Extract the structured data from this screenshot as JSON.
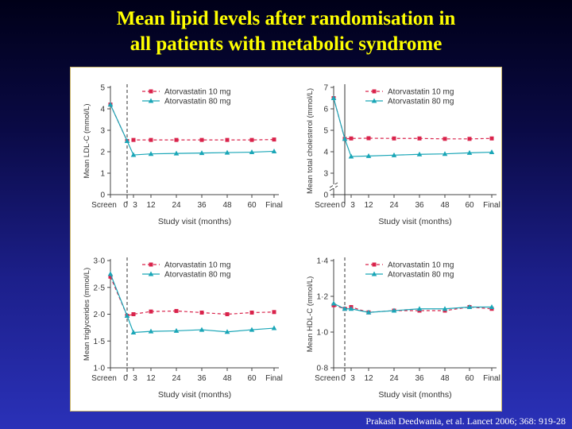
{
  "slide": {
    "title_line1": "Mean lipid levels after randomisation in",
    "title_line2": "all patients with metabolic syndrome",
    "citation": "Prakash Deedwania, et al. Lancet 2006; 368: 919-28"
  },
  "colors": {
    "atorvastatin_10": "#d9234b",
    "atorvastatin_80": "#1aa6b7",
    "axis": "#444444",
    "background_top": "#000018",
    "background_bottom": "#2a31b8",
    "title": "#ffff00"
  },
  "chart_data": [
    {
      "type": "line",
      "ylabel": "Mean LDL-C (mmol/L)",
      "xlabel": "Study visit (months)",
      "ylim": [
        0,
        5
      ],
      "yticks": [
        "0",
        "1",
        "2",
        "3",
        "4",
        "5"
      ],
      "x_categories": [
        "Screen",
        "0",
        "3",
        "12",
        "24",
        "36",
        "48",
        "60",
        "Final"
      ],
      "divider": "dashed",
      "axis_break": false,
      "series": [
        {
          "name": "Atorvastatin 10 mg",
          "values": [
            4.2,
            2.5,
            2.55,
            2.55,
            2.55,
            2.55,
            2.55,
            2.55,
            2.57
          ]
        },
        {
          "name": "Atorvastatin 80 mg",
          "values": [
            4.2,
            2.5,
            1.85,
            1.9,
            1.92,
            1.94,
            1.96,
            1.98,
            2.02
          ]
        }
      ]
    },
    {
      "type": "line",
      "ylabel": "Mean total cholesterol (mmol/L)",
      "xlabel": "Study visit (months)",
      "ylim": [
        2,
        7
      ],
      "yticks": [
        "0",
        "3",
        "4",
        "5",
        "6",
        "7"
      ],
      "x_categories": [
        "Screen",
        "0",
        "3",
        "12",
        "24",
        "36",
        "48",
        "60",
        "Final"
      ],
      "divider": "solid",
      "axis_break": true,
      "series": [
        {
          "name": "Atorvastatin 10 mg",
          "values": [
            6.5,
            4.6,
            4.62,
            4.63,
            4.62,
            4.62,
            4.6,
            4.6,
            4.62
          ]
        },
        {
          "name": "Atorvastatin 80 mg",
          "values": [
            6.5,
            4.6,
            3.78,
            3.8,
            3.84,
            3.88,
            3.9,
            3.95,
            3.98
          ]
        }
      ]
    },
    {
      "type": "line",
      "ylabel": "Mean triglycerides (mmol/L)",
      "xlabel": "Study visit (months)",
      "ylim": [
        1.0,
        3.0
      ],
      "yticks": [
        "1·0",
        "1·5",
        "2·0",
        "2·5",
        "3·0"
      ],
      "x_categories": [
        "Screen",
        "0",
        "3",
        "12",
        "24",
        "36",
        "48",
        "60",
        "Final"
      ],
      "divider": "dashed",
      "axis_break": false,
      "series": [
        {
          "name": "Atorvastatin 10 mg",
          "values": [
            2.7,
            1.97,
            2.0,
            2.05,
            2.06,
            2.03,
            2.0,
            2.03,
            2.04
          ]
        },
        {
          "name": "Atorvastatin 80 mg",
          "values": [
            2.75,
            1.97,
            1.66,
            1.68,
            1.69,
            1.71,
            1.67,
            1.71,
            1.74
          ]
        }
      ]
    },
    {
      "type": "line",
      "ylabel": "Mean HDL-C (mmol/L)",
      "xlabel": "Study visit (months)",
      "ylim": [
        0.8,
        1.4
      ],
      "yticks": [
        "0·8",
        "1·0",
        "1·2",
        "1·4"
      ],
      "x_categories": [
        "Screen",
        "0",
        "3",
        "12",
        "24",
        "36",
        "48",
        "60",
        "Final"
      ],
      "divider": "dashed",
      "axis_break": false,
      "series": [
        {
          "name": "Atorvastatin 10 mg",
          "values": [
            1.15,
            1.13,
            1.14,
            1.11,
            1.12,
            1.12,
            1.12,
            1.14,
            1.13
          ]
        },
        {
          "name": "Atorvastatin 80 mg",
          "values": [
            1.16,
            1.13,
            1.13,
            1.11,
            1.12,
            1.13,
            1.13,
            1.14,
            1.14
          ]
        }
      ]
    }
  ]
}
